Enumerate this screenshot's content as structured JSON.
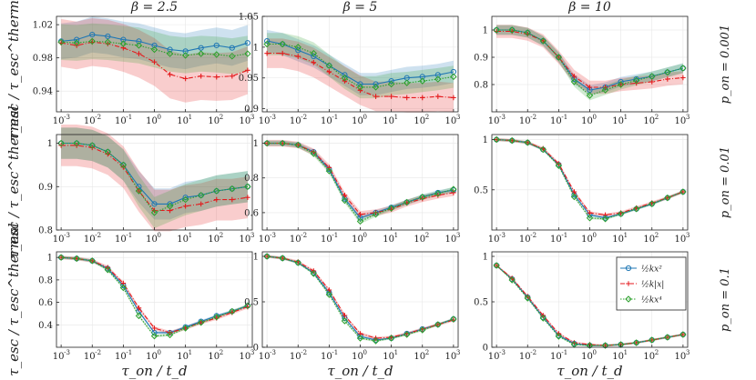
{
  "chart_data": {
    "type": "line",
    "description_layout": "3x3 grid",
    "columns": [
      {
        "title": "β = 2.5"
      },
      {
        "title": "β = 5"
      },
      {
        "title": "β = 10"
      }
    ],
    "rows": [
      {
        "label": "p_on = 0.001"
      },
      {
        "label": "p_on = 0.01"
      },
      {
        "label": "p_on = 0.1"
      }
    ],
    "xlabel": "τ_on / t_d",
    "ylabel": "τ_esc / τ_esc^thermal",
    "x_ticks": [
      "-3",
      "-2",
      "-1",
      "0",
      "1",
      "2",
      "3"
    ],
    "x_exponents": [
      -3,
      -2.5,
      -2,
      -1.5,
      -1,
      -0.5,
      0,
      0.5,
      1,
      1.5,
      2,
      2.5,
      3
    ],
    "legend": [
      {
        "name": "½kx²",
        "color": "#1f77b4",
        "marker": "circle",
        "dash": "solid"
      },
      {
        "name": "½k|x|",
        "color": "#e41a1c",
        "marker": "plus",
        "dash": "dashdot"
      },
      {
        "name": "½kx⁴",
        "color": "#2ca02c",
        "marker": "diamond",
        "dash": "dotted"
      }
    ],
    "panels": [
      {
        "row": 0,
        "col": 0,
        "ylim": [
          0.915,
          1.03
        ],
        "yticks": [
          0.94,
          0.98,
          1.02
        ],
        "ytick_labels": [
          "0.94",
          "0.98",
          "1.02"
        ],
        "band": 0.018,
        "series": [
          [
            1.0,
            1.002,
            1.008,
            1.006,
            1.002,
            1.0,
            0.995,
            0.99,
            0.988,
            0.992,
            0.995,
            0.992,
            0.998
          ],
          [
            0.998,
            0.995,
            0.999,
            0.997,
            0.992,
            0.985,
            0.975,
            0.96,
            0.955,
            0.958,
            0.957,
            0.958,
            0.965
          ],
          [
            0.999,
            0.998,
            1.0,
            0.999,
            0.997,
            0.995,
            0.99,
            0.985,
            0.983,
            0.985,
            0.984,
            0.982,
            0.985
          ]
        ]
      },
      {
        "row": 0,
        "col": 1,
        "ylim": [
          0.895,
          1.05
        ],
        "yticks": [
          0.9,
          0.95,
          1.0,
          1.05
        ],
        "ytick_labels": [
          "0.9",
          "0.95",
          "1",
          "1.05"
        ],
        "band": 0.015,
        "series": [
          [
            1.01,
            1.005,
            0.995,
            0.985,
            0.97,
            0.955,
            0.94,
            0.94,
            0.945,
            0.95,
            0.952,
            0.955,
            0.96
          ],
          [
            0.99,
            0.99,
            0.985,
            0.975,
            0.96,
            0.945,
            0.93,
            0.92,
            0.92,
            0.918,
            0.918,
            0.92,
            0.918
          ],
          [
            1.005,
            1.005,
            1.0,
            0.99,
            0.97,
            0.95,
            0.935,
            0.935,
            0.94,
            0.942,
            0.945,
            0.948,
            0.952
          ]
        ]
      },
      {
        "row": 0,
        "col": 2,
        "ylim": [
          0.7,
          1.05
        ],
        "yticks": [
          0.8,
          0.9,
          1.0
        ],
        "ytick_labels": [
          "0.8",
          "0.9",
          "1"
        ],
        "band": 0.015,
        "series": [
          [
            1.0,
            1.0,
            0.99,
            0.96,
            0.9,
            0.82,
            0.78,
            0.79,
            0.81,
            0.82,
            0.83,
            0.845,
            0.86
          ],
          [
            0.995,
            0.995,
            0.985,
            0.96,
            0.9,
            0.83,
            0.79,
            0.79,
            0.8,
            0.805,
            0.81,
            0.82,
            0.825
          ],
          [
            1.0,
            1.0,
            0.99,
            0.96,
            0.9,
            0.81,
            0.76,
            0.78,
            0.8,
            0.815,
            0.83,
            0.845,
            0.86
          ]
        ]
      },
      {
        "row": 1,
        "col": 0,
        "ylim": [
          0.8,
          1.02
        ],
        "yticks": [
          0.8,
          0.9,
          1.0
        ],
        "ytick_labels": [
          "0.8",
          "0.9",
          "1"
        ],
        "band": 0.03,
        "series": [
          [
            1.0,
            1.0,
            0.995,
            0.98,
            0.95,
            0.9,
            0.86,
            0.86,
            0.875,
            0.88,
            0.89,
            0.895,
            0.9
          ],
          [
            0.995,
            0.995,
            0.99,
            0.975,
            0.945,
            0.89,
            0.845,
            0.845,
            0.855,
            0.86,
            0.87,
            0.87,
            0.875
          ],
          [
            1.0,
            1.0,
            0.995,
            0.98,
            0.95,
            0.89,
            0.84,
            0.855,
            0.87,
            0.88,
            0.89,
            0.895,
            0.9
          ]
        ]
      },
      {
        "row": 1,
        "col": 1,
        "ylim": [
          0.5,
          1.05
        ],
        "yticks": [
          0.6,
          0.8,
          1.0
        ],
        "ytick_labels": [
          "0.6",
          "0.8",
          "1"
        ],
        "band": 0.012,
        "series": [
          [
            1.0,
            1.0,
            0.99,
            0.95,
            0.85,
            0.68,
            0.57,
            0.6,
            0.63,
            0.66,
            0.69,
            0.715,
            0.73
          ],
          [
            1.0,
            1.0,
            0.99,
            0.95,
            0.86,
            0.7,
            0.59,
            0.6,
            0.62,
            0.655,
            0.68,
            0.7,
            0.715
          ],
          [
            1.0,
            1.0,
            0.99,
            0.94,
            0.84,
            0.67,
            0.55,
            0.59,
            0.625,
            0.66,
            0.69,
            0.71,
            0.735
          ]
        ]
      },
      {
        "row": 1,
        "col": 2,
        "ylim": [
          0.1,
          1.05
        ],
        "yticks": [
          0.5,
          1.0
        ],
        "ytick_labels": [
          "0.5",
          "1"
        ],
        "band": 0.01,
        "series": [
          [
            1.0,
            0.99,
            0.97,
            0.9,
            0.75,
            0.45,
            0.25,
            0.22,
            0.26,
            0.31,
            0.36,
            0.42,
            0.48
          ],
          [
            1.0,
            0.99,
            0.97,
            0.91,
            0.76,
            0.48,
            0.27,
            0.25,
            0.27,
            0.32,
            0.37,
            0.42,
            0.48
          ],
          [
            1.0,
            0.99,
            0.97,
            0.9,
            0.74,
            0.43,
            0.22,
            0.21,
            0.26,
            0.31,
            0.36,
            0.42,
            0.48
          ]
        ]
      },
      {
        "row": 2,
        "col": 0,
        "ylim": [
          0.2,
          1.05
        ],
        "yticks": [
          0.4,
          0.6,
          0.8,
          1.0
        ],
        "ytick_labels": [
          "0.4",
          "0.6",
          "0.8",
          "1"
        ],
        "band": 0.01,
        "series": [
          [
            1.0,
            0.99,
            0.97,
            0.9,
            0.75,
            0.52,
            0.33,
            0.33,
            0.38,
            0.43,
            0.48,
            0.52,
            0.57
          ],
          [
            1.0,
            0.99,
            0.97,
            0.91,
            0.77,
            0.55,
            0.37,
            0.33,
            0.37,
            0.42,
            0.46,
            0.51,
            0.56
          ],
          [
            1.0,
            0.99,
            0.97,
            0.89,
            0.73,
            0.48,
            0.3,
            0.31,
            0.37,
            0.42,
            0.47,
            0.52,
            0.57
          ]
        ]
      },
      {
        "row": 2,
        "col": 1,
        "ylim": [
          0.0,
          1.05
        ],
        "yticks": [
          0.0,
          0.5,
          1.0
        ],
        "ytick_labels": [
          "0",
          "0.5",
          "1"
        ],
        "band": 0.01,
        "series": [
          [
            1.0,
            0.98,
            0.93,
            0.82,
            0.6,
            0.32,
            0.12,
            0.08,
            0.1,
            0.15,
            0.2,
            0.25,
            0.31
          ],
          [
            1.0,
            0.98,
            0.94,
            0.84,
            0.63,
            0.35,
            0.15,
            0.1,
            0.11,
            0.15,
            0.2,
            0.25,
            0.3
          ],
          [
            1.0,
            0.98,
            0.93,
            0.81,
            0.58,
            0.29,
            0.1,
            0.07,
            0.1,
            0.14,
            0.19,
            0.25,
            0.31
          ]
        ]
      },
      {
        "row": 2,
        "col": 2,
        "ylim": [
          0.0,
          1.05
        ],
        "yticks": [
          0.0,
          0.5,
          1.0
        ],
        "ytick_labels": [
          "0",
          "0.5",
          "1"
        ],
        "band": 0.008,
        "series": [
          [
            0.9,
            0.75,
            0.55,
            0.33,
            0.13,
            0.04,
            0.02,
            0.02,
            0.03,
            0.05,
            0.08,
            0.11,
            0.14
          ],
          [
            0.9,
            0.76,
            0.56,
            0.35,
            0.15,
            0.05,
            0.03,
            0.02,
            0.03,
            0.05,
            0.08,
            0.11,
            0.14
          ],
          [
            0.9,
            0.74,
            0.54,
            0.32,
            0.12,
            0.03,
            0.02,
            0.02,
            0.03,
            0.05,
            0.08,
            0.11,
            0.14
          ]
        ]
      }
    ]
  }
}
